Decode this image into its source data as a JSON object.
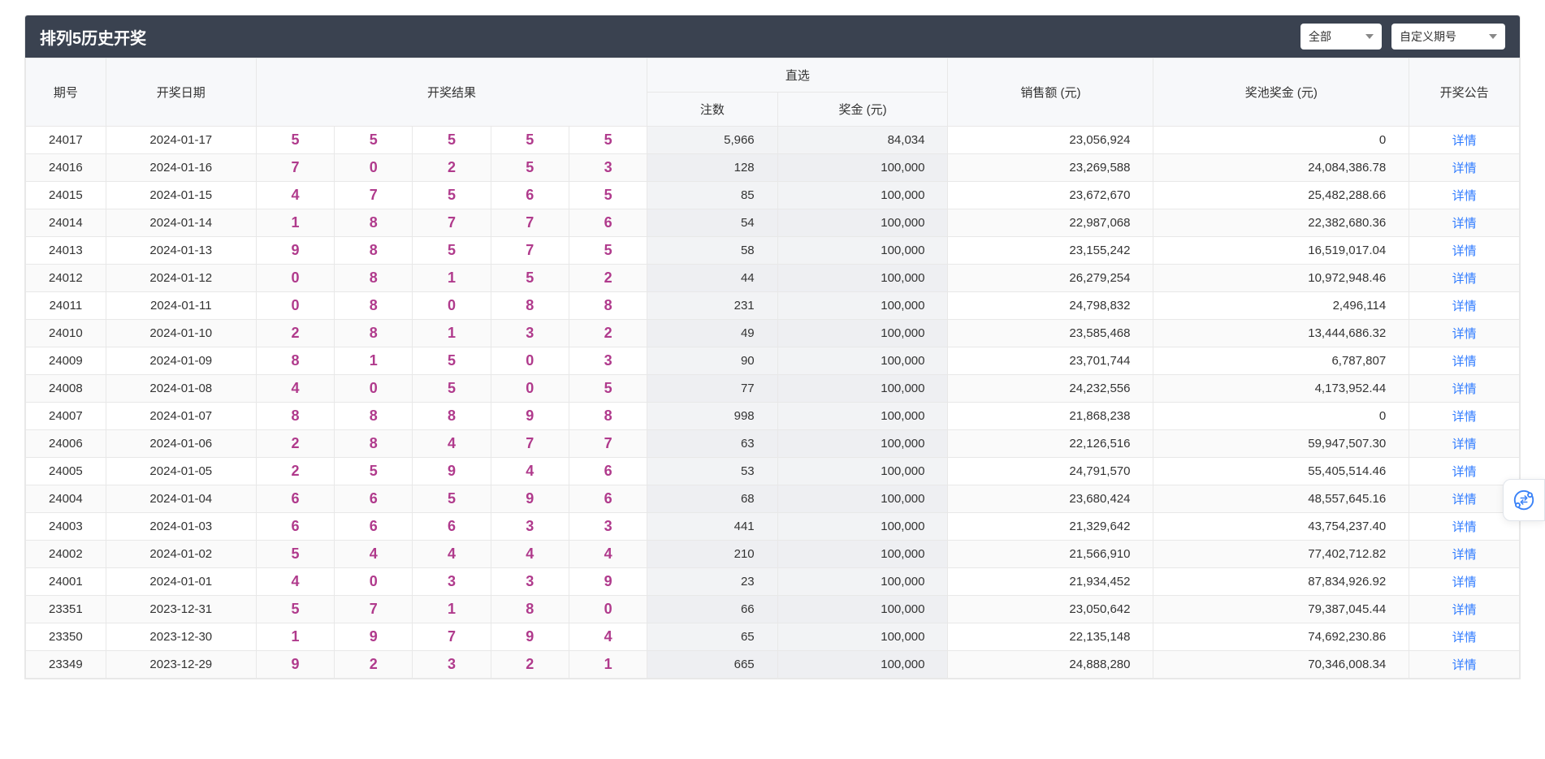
{
  "header": {
    "title": "排列5历史开奖",
    "filter1": "全部",
    "filter2": "自定义期号"
  },
  "columns": {
    "issue": "期号",
    "date": "开奖日期",
    "result": "开奖结果",
    "direct": "直选",
    "count": "注数",
    "prize": "奖金 (元)",
    "sales": "销售额 (元)",
    "pool": "奖池奖金 (元)",
    "notice": "开奖公告"
  },
  "detail_label": "详情",
  "ball_color": "#b03a8c",
  "link_color": "#2f7bff",
  "header_bg": "#3a4250",
  "rows": [
    {
      "issue": "24017",
      "date": "2024-01-17",
      "balls": [
        "5",
        "5",
        "5",
        "5",
        "5"
      ],
      "count": "5,966",
      "prize": "84,034",
      "sales": "23,056,924",
      "pool": "0"
    },
    {
      "issue": "24016",
      "date": "2024-01-16",
      "balls": [
        "7",
        "0",
        "2",
        "5",
        "3"
      ],
      "count": "128",
      "prize": "100,000",
      "sales": "23,269,588",
      "pool": "24,084,386.78"
    },
    {
      "issue": "24015",
      "date": "2024-01-15",
      "balls": [
        "4",
        "7",
        "5",
        "6",
        "5"
      ],
      "count": "85",
      "prize": "100,000",
      "sales": "23,672,670",
      "pool": "25,482,288.66"
    },
    {
      "issue": "24014",
      "date": "2024-01-14",
      "balls": [
        "1",
        "8",
        "7",
        "7",
        "6"
      ],
      "count": "54",
      "prize": "100,000",
      "sales": "22,987,068",
      "pool": "22,382,680.36"
    },
    {
      "issue": "24013",
      "date": "2024-01-13",
      "balls": [
        "9",
        "8",
        "5",
        "7",
        "5"
      ],
      "count": "58",
      "prize": "100,000",
      "sales": "23,155,242",
      "pool": "16,519,017.04"
    },
    {
      "issue": "24012",
      "date": "2024-01-12",
      "balls": [
        "0",
        "8",
        "1",
        "5",
        "2"
      ],
      "count": "44",
      "prize": "100,000",
      "sales": "26,279,254",
      "pool": "10,972,948.46"
    },
    {
      "issue": "24011",
      "date": "2024-01-11",
      "balls": [
        "0",
        "8",
        "0",
        "8",
        "8"
      ],
      "count": "231",
      "prize": "100,000",
      "sales": "24,798,832",
      "pool": "2,496,114"
    },
    {
      "issue": "24010",
      "date": "2024-01-10",
      "balls": [
        "2",
        "8",
        "1",
        "3",
        "2"
      ],
      "count": "49",
      "prize": "100,000",
      "sales": "23,585,468",
      "pool": "13,444,686.32"
    },
    {
      "issue": "24009",
      "date": "2024-01-09",
      "balls": [
        "8",
        "1",
        "5",
        "0",
        "3"
      ],
      "count": "90",
      "prize": "100,000",
      "sales": "23,701,744",
      "pool": "6,787,807"
    },
    {
      "issue": "24008",
      "date": "2024-01-08",
      "balls": [
        "4",
        "0",
        "5",
        "0",
        "5"
      ],
      "count": "77",
      "prize": "100,000",
      "sales": "24,232,556",
      "pool": "4,173,952.44"
    },
    {
      "issue": "24007",
      "date": "2024-01-07",
      "balls": [
        "8",
        "8",
        "8",
        "9",
        "8"
      ],
      "count": "998",
      "prize": "100,000",
      "sales": "21,868,238",
      "pool": "0"
    },
    {
      "issue": "24006",
      "date": "2024-01-06",
      "balls": [
        "2",
        "8",
        "4",
        "7",
        "7"
      ],
      "count": "63",
      "prize": "100,000",
      "sales": "22,126,516",
      "pool": "59,947,507.30"
    },
    {
      "issue": "24005",
      "date": "2024-01-05",
      "balls": [
        "2",
        "5",
        "9",
        "4",
        "6"
      ],
      "count": "53",
      "prize": "100,000",
      "sales": "24,791,570",
      "pool": "55,405,514.46"
    },
    {
      "issue": "24004",
      "date": "2024-01-04",
      "balls": [
        "6",
        "6",
        "5",
        "9",
        "6"
      ],
      "count": "68",
      "prize": "100,000",
      "sales": "23,680,424",
      "pool": "48,557,645.16"
    },
    {
      "issue": "24003",
      "date": "2024-01-03",
      "balls": [
        "6",
        "6",
        "6",
        "3",
        "3"
      ],
      "count": "441",
      "prize": "100,000",
      "sales": "21,329,642",
      "pool": "43,754,237.40"
    },
    {
      "issue": "24002",
      "date": "2024-01-02",
      "balls": [
        "5",
        "4",
        "4",
        "4",
        "4"
      ],
      "count": "210",
      "prize": "100,000",
      "sales": "21,566,910",
      "pool": "77,402,712.82"
    },
    {
      "issue": "24001",
      "date": "2024-01-01",
      "balls": [
        "4",
        "0",
        "3",
        "3",
        "9"
      ],
      "count": "23",
      "prize": "100,000",
      "sales": "21,934,452",
      "pool": "87,834,926.92"
    },
    {
      "issue": "23351",
      "date": "2023-12-31",
      "balls": [
        "5",
        "7",
        "1",
        "8",
        "0"
      ],
      "count": "66",
      "prize": "100,000",
      "sales": "23,050,642",
      "pool": "79,387,045.44"
    },
    {
      "issue": "23350",
      "date": "2023-12-30",
      "balls": [
        "1",
        "9",
        "7",
        "9",
        "4"
      ],
      "count": "65",
      "prize": "100,000",
      "sales": "22,135,148",
      "pool": "74,692,230.86"
    },
    {
      "issue": "23349",
      "date": "2023-12-29",
      "balls": [
        "9",
        "2",
        "3",
        "2",
        "1"
      ],
      "count": "665",
      "prize": "100,000",
      "sales": "24,888,280",
      "pool": "70,346,008.34"
    }
  ]
}
